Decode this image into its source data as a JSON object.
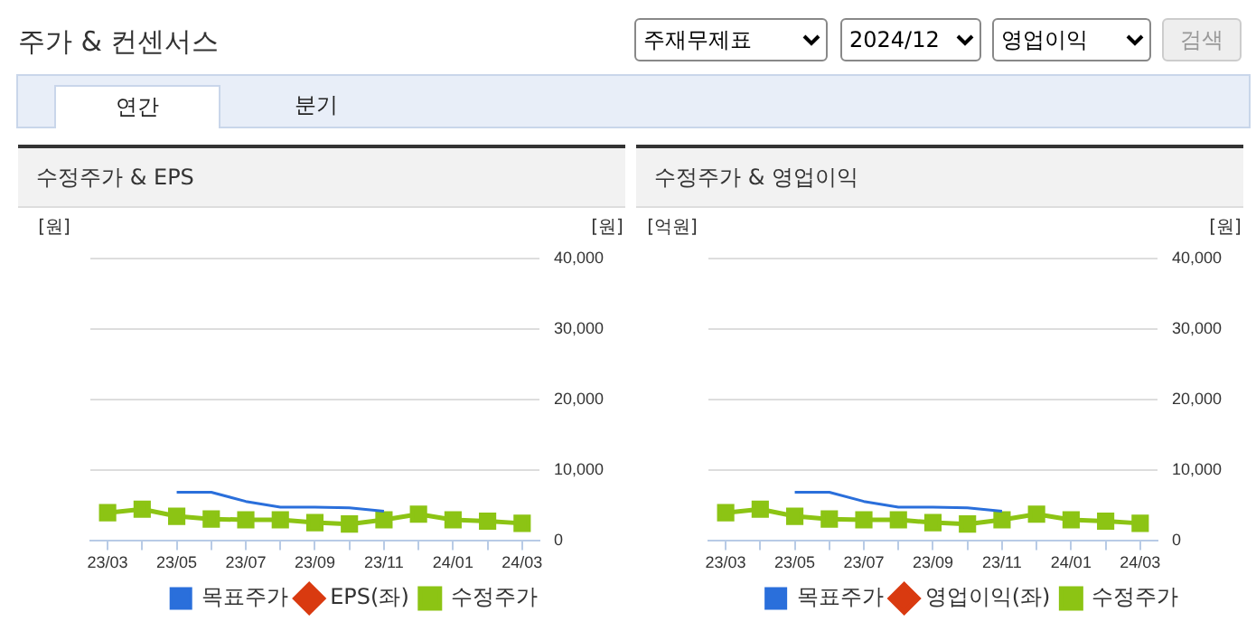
{
  "chart_data": [
    {
      "type": "other",
      "title": "주가 & 컨센서스",
      "annotations": [
        "주재무제표",
        "2024/12",
        "영업이익",
        "검색",
        "연간",
        "분기"
      ]
    },
    {
      "type": "line",
      "title": "수정주가 & EPS",
      "categories": [
        "23/03",
        null,
        "23/05",
        null,
        "23/07",
        null,
        "23/09",
        null,
        "23/11",
        null,
        "24/01",
        null,
        "24/03"
      ],
      "ylabel": "[원]",
      "y2label": "[원]",
      "y2lim": [
        0,
        40000
      ],
      "y2ticks": [
        0,
        {
          "value": 10000,
          "label": "10,000"
        },
        {
          "value": 20000,
          "label": "20,000"
        },
        {
          "value": 30000,
          "label": "30,000"
        },
        {
          "value": 40000,
          "label": "40,000"
        }
      ],
      "grid": "y",
      "legend": "bottom",
      "series": [
        {
          "name": "목표주가",
          "color": "#2a6fdb",
          "axis": "y2",
          "marker": "none",
          "values": [
            null,
            null,
            6900,
            6900,
            5600,
            4800,
            4800,
            4700,
            4200,
            null,
            null,
            null,
            null
          ]
        },
        {
          "name": "EPS(좌)",
          "color": "#d93a10",
          "axis": "y",
          "marker": "diamond",
          "values": [
            null,
            null,
            null,
            null,
            null,
            null,
            null,
            null,
            null,
            null,
            null,
            null,
            null
          ]
        },
        {
          "name": "수정주가",
          "color": "#8cc414",
          "axis": "y2",
          "marker": "square",
          "values": [
            4000,
            4500,
            3500,
            3100,
            3000,
            3000,
            2600,
            2400,
            3000,
            3800,
            3000,
            2800,
            2500
          ]
        }
      ]
    },
    {
      "type": "line",
      "title": "수정주가 & 영업이익",
      "categories": [
        "23/03",
        null,
        "23/05",
        null,
        "23/07",
        null,
        "23/09",
        null,
        "23/11",
        null,
        "24/01",
        null,
        "24/03"
      ],
      "ylabel": "[억원]",
      "y2label": "[원]",
      "y2lim": [
        0,
        40000
      ],
      "y2ticks": [
        0,
        {
          "value": 10000,
          "label": "10,000"
        },
        {
          "value": 20000,
          "label": "20,000"
        },
        {
          "value": 30000,
          "label": "30,000"
        },
        {
          "value": 40000,
          "label": "40,000"
        }
      ],
      "grid": "y",
      "legend": "bottom",
      "series": [
        {
          "name": "목표주가",
          "color": "#2a6fdb",
          "axis": "y2",
          "marker": "none",
          "values": [
            null,
            null,
            6900,
            6900,
            5600,
            4800,
            4800,
            4700,
            4200,
            null,
            null,
            null,
            null
          ]
        },
        {
          "name": "영업이익(좌)",
          "color": "#d93a10",
          "axis": "y",
          "marker": "diamond",
          "values": [
            null,
            null,
            null,
            null,
            null,
            null,
            null,
            null,
            null,
            null,
            null,
            null,
            null
          ]
        },
        {
          "name": "수정주가",
          "color": "#8cc414",
          "axis": "y2",
          "marker": "square",
          "values": [
            4000,
            4500,
            3500,
            3100,
            3000,
            3000,
            2600,
            2400,
            3000,
            3800,
            3000,
            2800,
            2500
          ]
        }
      ]
    }
  ]
}
